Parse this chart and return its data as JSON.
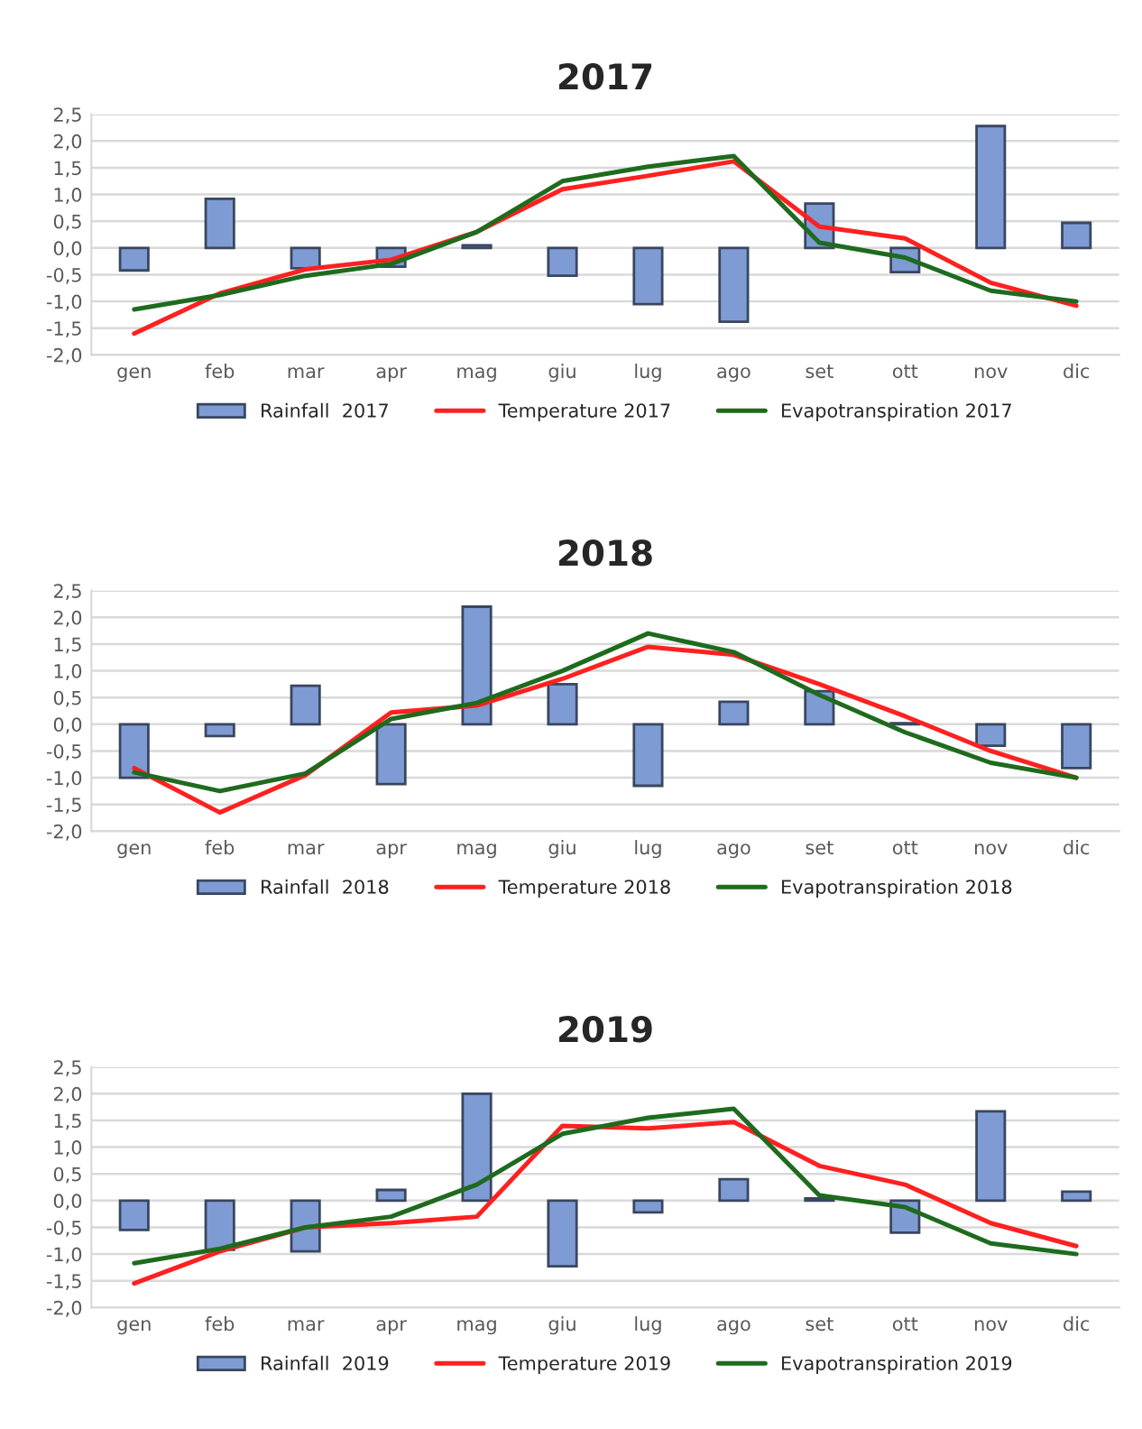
{
  "chart_data": [
    {
      "type": "bar",
      "title": "2017",
      "categories": [
        "gen",
        "feb",
        "mar",
        "apr",
        "mag",
        "giu",
        "lug",
        "ago",
        "set",
        "ott",
        "nov",
        "dic"
      ],
      "ylim": [
        -2.0,
        2.5
      ],
      "yticks": [
        {
          "value": -2.0,
          "label": "-2,0"
        },
        {
          "value": -1.5,
          "label": "-1,5"
        },
        {
          "value": -1.0,
          "label": "-1,0"
        },
        {
          "value": -0.5,
          "label": "-0,5"
        },
        {
          "value": 0.0,
          "label": "0,0"
        },
        {
          "value": 0.5,
          "label": "0,5"
        },
        {
          "value": 1.0,
          "label": "1,0"
        },
        {
          "value": 1.5,
          "label": "1,5"
        },
        {
          "value": 2.0,
          "label": "2,0"
        },
        {
          "value": 2.5,
          "label": "2,5"
        }
      ],
      "grid": "y",
      "legend": "bottom",
      "marker": "none",
      "line_style": "solid",
      "series": [
        {
          "name": "Rainfall  2017",
          "color": "#7f9bd4",
          "values": [
            -0.42,
            0.92,
            -0.38,
            -0.35,
            0.05,
            -0.52,
            -1.05,
            -1.38,
            0.83,
            -0.45,
            2.28,
            0.47
          ]
        },
        {
          "name": "Temperature 2017",
          "type": "line",
          "color": "#ff2020",
          "values": [
            -1.6,
            -0.85,
            -0.4,
            -0.22,
            0.3,
            1.1,
            1.35,
            1.62,
            0.4,
            0.18,
            -0.65,
            -1.08
          ]
        },
        {
          "name": "Evapotranspiration 2017",
          "type": "line",
          "color": "#1e6b1e",
          "values": [
            -1.15,
            -0.88,
            -0.52,
            -0.3,
            0.3,
            1.25,
            1.52,
            1.72,
            0.1,
            -0.18,
            -0.8,
            -1.0
          ]
        }
      ]
    },
    {
      "type": "bar",
      "title": "2018",
      "categories": [
        "gen",
        "feb",
        "mar",
        "apr",
        "mag",
        "giu",
        "lug",
        "ago",
        "set",
        "ott",
        "nov",
        "dic"
      ],
      "ylim": [
        -2.0,
        2.5
      ],
      "yticks": [
        {
          "value": -2.0,
          "label": "-2,0"
        },
        {
          "value": -1.5,
          "label": "-1,5"
        },
        {
          "value": -1.0,
          "label": "-1,0"
        },
        {
          "value": -0.5,
          "label": "-0,5"
        },
        {
          "value": 0.0,
          "label": "0,0"
        },
        {
          "value": 0.5,
          "label": "0,5"
        },
        {
          "value": 1.0,
          "label": "1,0"
        },
        {
          "value": 1.5,
          "label": "1,5"
        },
        {
          "value": 2.0,
          "label": "2,0"
        },
        {
          "value": 2.5,
          "label": "2,5"
        }
      ],
      "grid": "y",
      "legend": "bottom",
      "marker": "none",
      "line_style": "solid",
      "series": [
        {
          "name": "Rainfall  2018",
          "color": "#7f9bd4",
          "values": [
            -1.0,
            -0.22,
            0.72,
            -1.12,
            2.2,
            0.75,
            -1.15,
            0.42,
            0.62,
            0.02,
            -0.4,
            -0.82
          ]
        },
        {
          "name": "Temperature 2018",
          "type": "line",
          "color": "#ff2020",
          "values": [
            -0.82,
            -1.65,
            -0.95,
            0.22,
            0.35,
            0.85,
            1.45,
            1.3,
            0.75,
            0.15,
            -0.5,
            -1.0
          ]
        },
        {
          "name": "Evapotranspiration 2018",
          "type": "line",
          "color": "#1e6b1e",
          "values": [
            -0.9,
            -1.25,
            -0.92,
            0.1,
            0.4,
            1.0,
            1.7,
            1.35,
            0.55,
            -0.15,
            -0.72,
            -1.0
          ]
        }
      ]
    },
    {
      "type": "bar",
      "title": "2019",
      "categories": [
        "gen",
        "feb",
        "mar",
        "apr",
        "mag",
        "giu",
        "lug",
        "ago",
        "set",
        "ott",
        "nov",
        "dic"
      ],
      "ylim": [
        -2.0,
        2.5
      ],
      "yticks": [
        {
          "value": -2.0,
          "label": "-2,0"
        },
        {
          "value": -1.5,
          "label": "-1,5"
        },
        {
          "value": -1.0,
          "label": "-1,0"
        },
        {
          "value": -0.5,
          "label": "-0,5"
        },
        {
          "value": 0.0,
          "label": "0,0"
        },
        {
          "value": 0.5,
          "label": "0,5"
        },
        {
          "value": 1.0,
          "label": "1,0"
        },
        {
          "value": 1.5,
          "label": "1,5"
        },
        {
          "value": 2.0,
          "label": "2,0"
        },
        {
          "value": 2.5,
          "label": "2,5"
        }
      ],
      "grid": "y",
      "legend": "bottom",
      "marker": "none",
      "line_style": "solid",
      "series": [
        {
          "name": "Rainfall  2019",
          "color": "#7f9bd4",
          "values": [
            -0.55,
            -0.92,
            -0.95,
            0.2,
            2.0,
            -1.23,
            -0.22,
            0.4,
            0.04,
            -0.6,
            1.67,
            0.17
          ]
        },
        {
          "name": "Temperature 2019",
          "type": "line",
          "color": "#ff2020",
          "values": [
            -1.55,
            -0.95,
            -0.5,
            -0.42,
            -0.3,
            1.4,
            1.35,
            1.47,
            0.65,
            0.3,
            -0.42,
            -0.85
          ]
        },
        {
          "name": "Evapotranspiration 2019",
          "type": "line",
          "color": "#1e6b1e",
          "values": [
            -1.17,
            -0.9,
            -0.5,
            -0.3,
            0.3,
            1.25,
            1.55,
            1.72,
            0.1,
            -0.12,
            -0.8,
            -1.0
          ]
        }
      ]
    }
  ]
}
